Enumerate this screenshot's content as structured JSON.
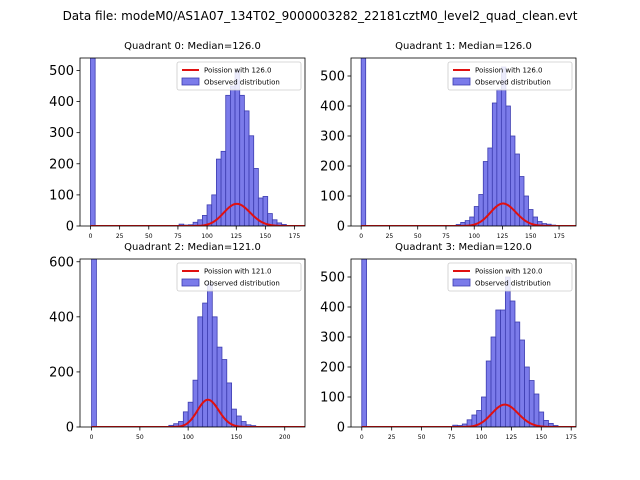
{
  "suptitle": "Data file: modeM0/AS1A07_134T02_9000003282_22181cztM0_level2_quad_clean.evt",
  "colors": {
    "bar_fill": "#7b7bea",
    "bar_edge": "#3d3db0",
    "poisson_line": "#e01010",
    "axes": "#000000",
    "background": "#ffffff"
  },
  "chart_data": [
    {
      "type": "bar",
      "title": "Quadrant 0: Median=126.0",
      "xlim": [
        -9,
        184
      ],
      "ylim": [
        0,
        540
      ],
      "xticks": [
        0,
        25,
        50,
        75,
        100,
        125,
        150,
        175
      ],
      "yticks": [
        0,
        100,
        200,
        300,
        400,
        500
      ],
      "bin_width": 4,
      "legend": [
        "Poission with 126.0",
        "Observed distribution"
      ],
      "legend_position": "top-right",
      "poisson_mean": 126.0,
      "poisson_scale": 2005,
      "bins": [
        [
          0,
          540
        ],
        [
          76,
          6
        ],
        [
          80,
          3
        ],
        [
          84,
          4
        ],
        [
          88,
          12
        ],
        [
          92,
          20
        ],
        [
          96,
          34
        ],
        [
          100,
          68
        ],
        [
          104,
          100
        ],
        [
          108,
          215
        ],
        [
          112,
          240
        ],
        [
          116,
          420
        ],
        [
          120,
          450
        ],
        [
          124,
          500
        ],
        [
          128,
          420
        ],
        [
          132,
          370
        ],
        [
          136,
          290
        ],
        [
          140,
          185
        ],
        [
          144,
          90
        ],
        [
          148,
          95
        ],
        [
          152,
          40
        ],
        [
          156,
          20
        ],
        [
          160,
          10
        ],
        [
          164,
          5
        ]
      ]
    },
    {
      "type": "bar",
      "title": "Quadrant 1: Median=126.0",
      "xlim": [
        -9,
        190
      ],
      "ylim": [
        0,
        560
      ],
      "xticks": [
        0,
        25,
        50,
        75,
        100,
        125,
        150,
        175
      ],
      "yticks": [
        0,
        100,
        200,
        300,
        400,
        500
      ],
      "bin_width": 4,
      "legend": [
        "Poission with 126.0",
        "Observed distribution"
      ],
      "legend_position": "top-right",
      "poisson_mean": 126.0,
      "poisson_scale": 2106,
      "bins": [
        [
          0,
          560
        ],
        [
          84,
          5
        ],
        [
          88,
          12
        ],
        [
          92,
          18
        ],
        [
          96,
          30
        ],
        [
          100,
          65
        ],
        [
          104,
          105
        ],
        [
          108,
          215
        ],
        [
          112,
          260
        ],
        [
          116,
          410
        ],
        [
          120,
          455
        ],
        [
          124,
          530
        ],
        [
          128,
          400
        ],
        [
          132,
          300
        ],
        [
          136,
          240
        ],
        [
          140,
          165
        ],
        [
          144,
          100
        ],
        [
          148,
          55
        ],
        [
          152,
          30
        ],
        [
          156,
          15
        ],
        [
          160,
          8
        ],
        [
          164,
          6
        ],
        [
          168,
          3
        ]
      ]
    },
    {
      "type": "bar",
      "title": "Quadrant 2: Median=121.0",
      "xlim": [
        -12,
        221
      ],
      "ylim": [
        0,
        610
      ],
      "xticks": [
        0,
        50,
        100,
        150,
        200
      ],
      "yticks": [
        0,
        200,
        400,
        600
      ],
      "bin_width": 5,
      "legend": [
        "Poission with 121.0",
        "Observed distribution"
      ],
      "legend_position": "top-right",
      "poisson_mean": 121.0,
      "poisson_scale": 2730,
      "bins": [
        [
          0,
          610
        ],
        [
          80,
          6
        ],
        [
          85,
          12
        ],
        [
          90,
          20
        ],
        [
          95,
          55
        ],
        [
          100,
          90
        ],
        [
          105,
          170
        ],
        [
          110,
          400
        ],
        [
          115,
          450
        ],
        [
          120,
          520
        ],
        [
          125,
          400
        ],
        [
          130,
          290
        ],
        [
          135,
          245
        ],
        [
          140,
          160
        ],
        [
          145,
          65
        ],
        [
          150,
          40
        ],
        [
          155,
          20
        ],
        [
          160,
          8
        ],
        [
          165,
          5
        ]
      ]
    },
    {
      "type": "bar",
      "title": "Quadrant 3: Median=120.0",
      "xlim": [
        -9,
        179
      ],
      "ylim": [
        0,
        560
      ],
      "xticks": [
        0,
        25,
        50,
        75,
        100,
        125,
        150,
        175
      ],
      "yticks": [
        0,
        100,
        200,
        300,
        400,
        500
      ],
      "bin_width": 4,
      "legend": [
        "Poission with 120.0",
        "Observed distribution"
      ],
      "legend_position": "top-right",
      "poisson_mean": 120.0,
      "poisson_scale": 2050,
      "bins": [
        [
          0,
          560
        ],
        [
          76,
          6
        ],
        [
          80,
          5
        ],
        [
          84,
          10
        ],
        [
          88,
          24
        ],
        [
          92,
          40
        ],
        [
          96,
          55
        ],
        [
          100,
          100
        ],
        [
          104,
          220
        ],
        [
          108,
          300
        ],
        [
          112,
          390
        ],
        [
          116,
          390
        ],
        [
          120,
          500
        ],
        [
          124,
          420
        ],
        [
          128,
          350
        ],
        [
          132,
          290
        ],
        [
          136,
          200
        ],
        [
          140,
          155
        ],
        [
          144,
          110
        ],
        [
          148,
          50
        ],
        [
          152,
          22
        ],
        [
          156,
          12
        ],
        [
          160,
          5
        ]
      ]
    }
  ]
}
